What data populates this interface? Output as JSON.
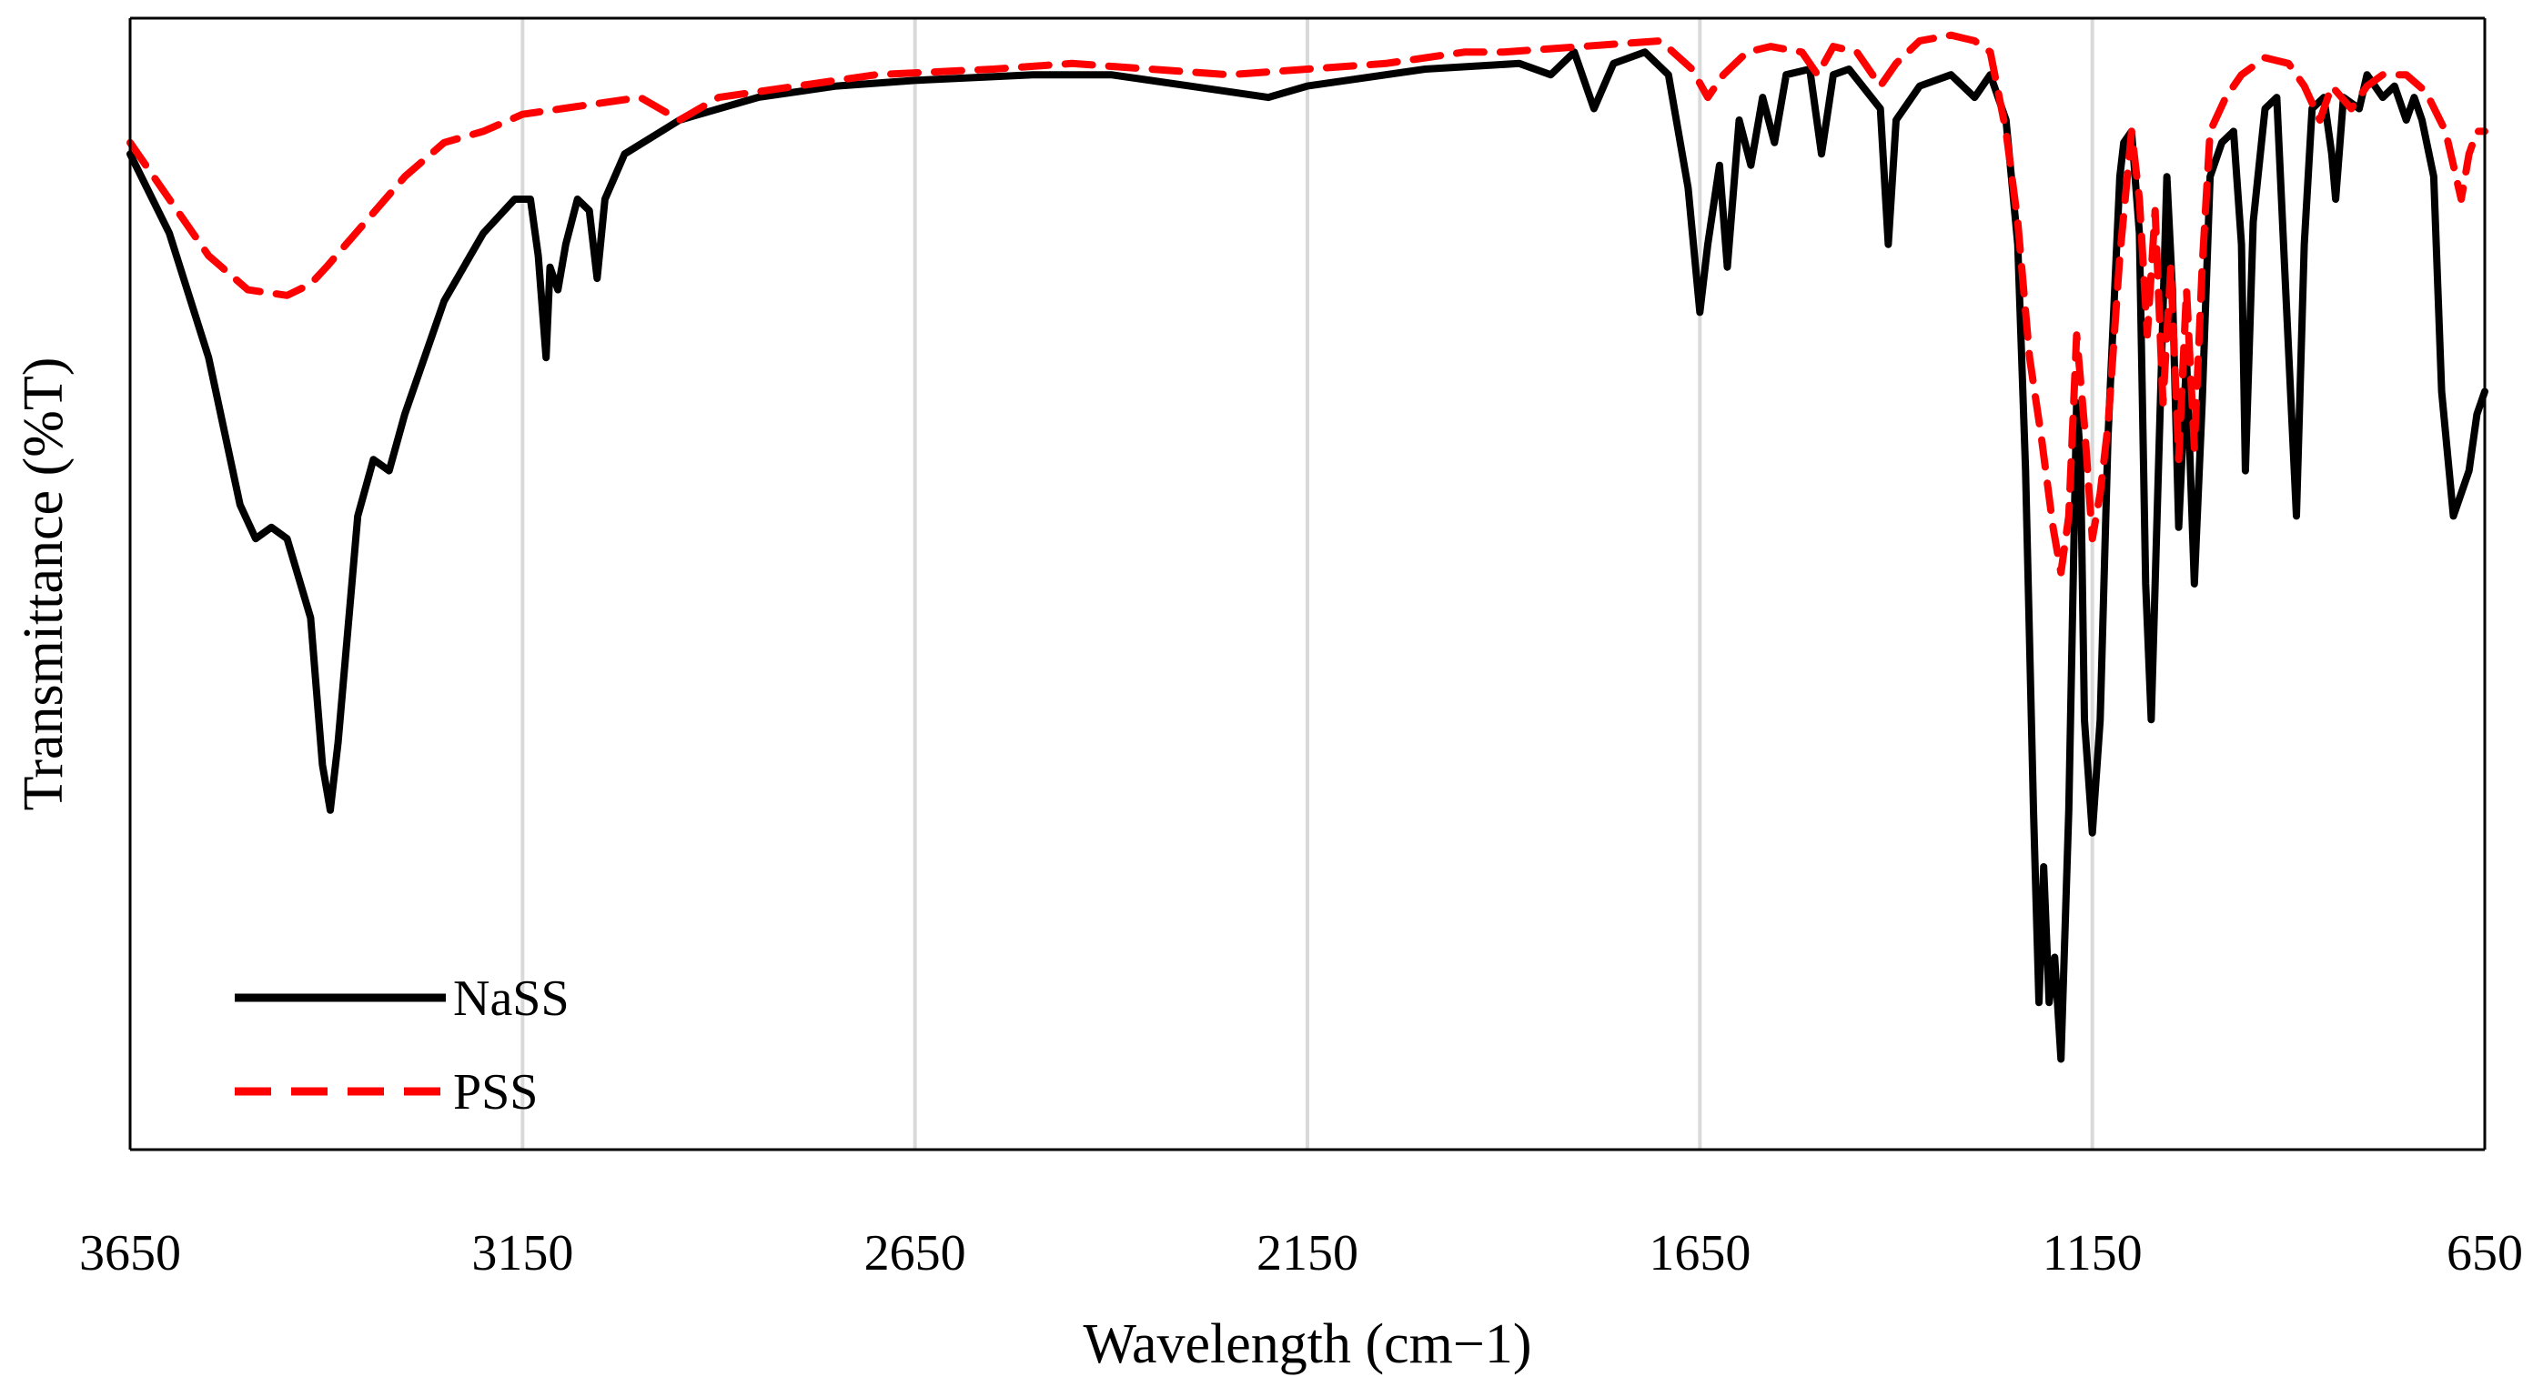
{
  "chart_data": {
    "type": "line",
    "title": "",
    "xlabel": "Wavelength (cm−1)",
    "ylabel": "Transmittance (%T)",
    "xlim": [
      3650,
      650
    ],
    "x_reversed": true,
    "xticks": [
      3650,
      3150,
      2650,
      2150,
      1650,
      1150,
      650
    ],
    "ylim": [
      0,
      100
    ],
    "grid": "vertical",
    "legend_position": "bottom-left",
    "series": [
      {
        "name": "NaSS",
        "color": "#000000",
        "dash": "solid",
        "points": [
          [
            3650,
            88
          ],
          [
            3600,
            81
          ],
          [
            3550,
            70
          ],
          [
            3510,
            57
          ],
          [
            3490,
            54
          ],
          [
            3470,
            55
          ],
          [
            3450,
            54
          ],
          [
            3420,
            47
          ],
          [
            3405,
            34
          ],
          [
            3395,
            30
          ],
          [
            3385,
            36
          ],
          [
            3360,
            56
          ],
          [
            3340,
            61
          ],
          [
            3320,
            60
          ],
          [
            3300,
            65
          ],
          [
            3250,
            75
          ],
          [
            3200,
            81
          ],
          [
            3160,
            84
          ],
          [
            3140,
            84
          ],
          [
            3130,
            79
          ],
          [
            3120,
            70
          ],
          [
            3115,
            78
          ],
          [
            3105,
            76
          ],
          [
            3095,
            80
          ],
          [
            3080,
            84
          ],
          [
            3065,
            83
          ],
          [
            3055,
            77
          ],
          [
            3045,
            84
          ],
          [
            3020,
            88
          ],
          [
            2950,
            91
          ],
          [
            2850,
            93
          ],
          [
            2750,
            94
          ],
          [
            2650,
            94.5
          ],
          [
            2500,
            95
          ],
          [
            2400,
            95
          ],
          [
            2300,
            94
          ],
          [
            2200,
            93
          ],
          [
            2150,
            94
          ],
          [
            2000,
            95.5
          ],
          [
            1880,
            96
          ],
          [
            1840,
            95
          ],
          [
            1810,
            97
          ],
          [
            1785,
            92
          ],
          [
            1760,
            96
          ],
          [
            1720,
            97
          ],
          [
            1690,
            95
          ],
          [
            1665,
            85
          ],
          [
            1650,
            74
          ],
          [
            1640,
            80
          ],
          [
            1625,
            87
          ],
          [
            1615,
            78
          ],
          [
            1600,
            91
          ],
          [
            1585,
            87
          ],
          [
            1570,
            93
          ],
          [
            1555,
            89
          ],
          [
            1540,
            95
          ],
          [
            1510,
            95.5
          ],
          [
            1495,
            88
          ],
          [
            1480,
            95
          ],
          [
            1460,
            95.5
          ],
          [
            1420,
            92
          ],
          [
            1410,
            80
          ],
          [
            1400,
            91
          ],
          [
            1370,
            94
          ],
          [
            1330,
            95
          ],
          [
            1300,
            93
          ],
          [
            1280,
            95
          ],
          [
            1260,
            91
          ],
          [
            1245,
            80
          ],
          [
            1235,
            60
          ],
          [
            1225,
            30
          ],
          [
            1218,
            13
          ],
          [
            1212,
            25
          ],
          [
            1205,
            13
          ],
          [
            1198,
            17
          ],
          [
            1190,
            8
          ],
          [
            1180,
            30
          ],
          [
            1170,
            66
          ],
          [
            1165,
            61
          ],
          [
            1160,
            38
          ],
          [
            1150,
            28
          ],
          [
            1140,
            38
          ],
          [
            1130,
            63
          ],
          [
            1115,
            86
          ],
          [
            1110,
            89
          ],
          [
            1100,
            90
          ],
          [
            1090,
            81
          ],
          [
            1082,
            50
          ],
          [
            1075,
            38
          ],
          [
            1065,
            62
          ],
          [
            1055,
            86
          ],
          [
            1048,
            76
          ],
          [
            1040,
            55
          ],
          [
            1030,
            70
          ],
          [
            1020,
            50
          ],
          [
            1010,
            66
          ],
          [
            1000,
            86
          ],
          [
            985,
            89
          ],
          [
            970,
            90
          ],
          [
            960,
            80
          ],
          [
            955,
            60
          ],
          [
            945,
            82
          ],
          [
            930,
            92
          ],
          [
            915,
            93
          ],
          [
            905,
            78
          ],
          [
            890,
            56
          ],
          [
            880,
            80
          ],
          [
            870,
            92
          ],
          [
            855,
            93
          ],
          [
            845,
            88
          ],
          [
            840,
            84
          ],
          [
            830,
            93
          ],
          [
            810,
            92
          ],
          [
            800,
            95
          ],
          [
            780,
            93
          ],
          [
            765,
            94
          ],
          [
            750,
            91
          ],
          [
            740,
            93
          ],
          [
            730,
            91
          ],
          [
            715,
            86
          ],
          [
            705,
            67
          ],
          [
            690,
            56
          ],
          [
            670,
            60
          ],
          [
            660,
            65
          ],
          [
            650,
            67
          ]
        ]
      },
      {
        "name": "PSS",
        "color": "#ff0000",
        "dash": "dashed",
        "points": [
          [
            3650,
            89
          ],
          [
            3600,
            84
          ],
          [
            3550,
            79
          ],
          [
            3500,
            76
          ],
          [
            3450,
            75.5
          ],
          [
            3420,
            76.5
          ],
          [
            3400,
            78
          ],
          [
            3350,
            82
          ],
          [
            3300,
            86
          ],
          [
            3250,
            89
          ],
          [
            3200,
            90
          ],
          [
            3150,
            91.5
          ],
          [
            3100,
            92
          ],
          [
            3000,
            93
          ],
          [
            2950,
            91
          ],
          [
            2900,
            93
          ],
          [
            2800,
            94
          ],
          [
            2700,
            95
          ],
          [
            2550,
            95.5
          ],
          [
            2450,
            96
          ],
          [
            2350,
            95.5
          ],
          [
            2250,
            95
          ],
          [
            2150,
            95.5
          ],
          [
            2050,
            96
          ],
          [
            1950,
            97
          ],
          [
            1900,
            97
          ],
          [
            1800,
            97.5
          ],
          [
            1700,
            98
          ],
          [
            1660,
            95.5
          ],
          [
            1640,
            93
          ],
          [
            1620,
            95
          ],
          [
            1590,
            97
          ],
          [
            1560,
            97.5
          ],
          [
            1520,
            97
          ],
          [
            1500,
            95
          ],
          [
            1480,
            97.5
          ],
          [
            1450,
            97
          ],
          [
            1420,
            94
          ],
          [
            1400,
            96
          ],
          [
            1370,
            98
          ],
          [
            1330,
            98.5
          ],
          [
            1300,
            98
          ],
          [
            1280,
            97
          ],
          [
            1260,
            90
          ],
          [
            1245,
            82
          ],
          [
            1230,
            70
          ],
          [
            1215,
            63
          ],
          [
            1200,
            55
          ],
          [
            1190,
            51
          ],
          [
            1180,
            56
          ],
          [
            1170,
            72
          ],
          [
            1160,
            64
          ],
          [
            1150,
            54
          ],
          [
            1140,
            58
          ],
          [
            1130,
            64
          ],
          [
            1115,
            79
          ],
          [
            1100,
            90
          ],
          [
            1090,
            84
          ],
          [
            1080,
            72
          ],
          [
            1070,
            83
          ],
          [
            1060,
            66
          ],
          [
            1050,
            78
          ],
          [
            1040,
            61
          ],
          [
            1030,
            76
          ],
          [
            1020,
            62
          ],
          [
            1010,
            78
          ],
          [
            1000,
            90
          ],
          [
            980,
            93
          ],
          [
            960,
            95
          ],
          [
            930,
            96.5
          ],
          [
            900,
            96
          ],
          [
            880,
            94
          ],
          [
            860,
            91
          ],
          [
            845,
            94
          ],
          [
            820,
            92
          ],
          [
            800,
            94
          ],
          [
            780,
            95
          ],
          [
            750,
            95
          ],
          [
            725,
            93.5
          ],
          [
            700,
            90
          ],
          [
            680,
            84
          ],
          [
            670,
            88
          ],
          [
            660,
            90
          ],
          [
            650,
            90
          ]
        ]
      }
    ]
  }
}
